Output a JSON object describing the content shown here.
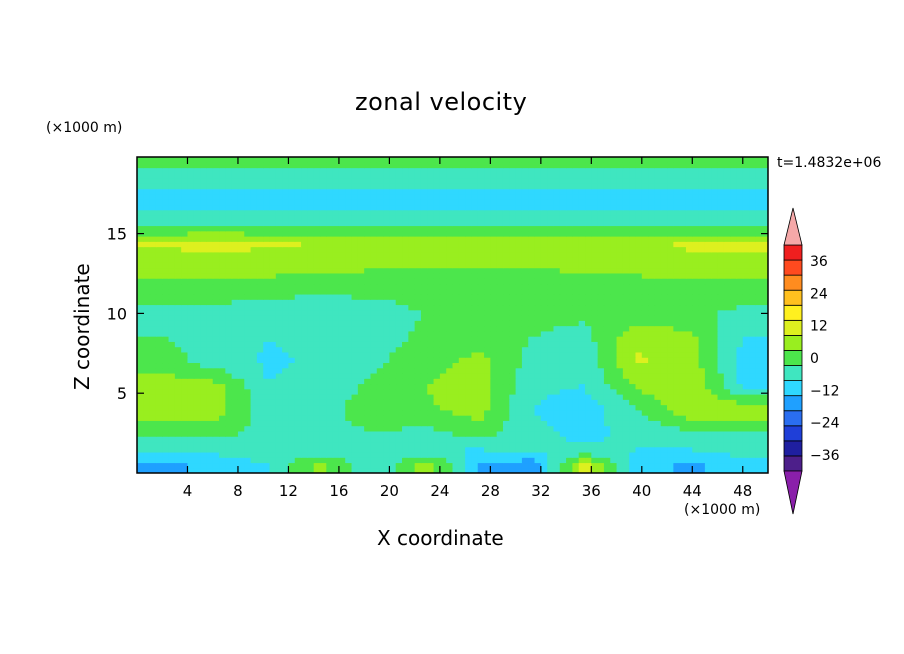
{
  "chart_data": {
    "type": "heatmap",
    "title": "zonal velocity",
    "xlabel": "X coordinate",
    "ylabel": "Z coordinate",
    "x_unit": "(×1000 m)",
    "y_unit": "(×1000 m)",
    "timestamp": "t=1.4832e+06",
    "xlim": [
      0,
      50
    ],
    "ylim": [
      0,
      19.8
    ],
    "x_ticks": [
      "4",
      "8",
      "12",
      "16",
      "20",
      "24",
      "28",
      "32",
      "36",
      "40",
      "44",
      "48"
    ],
    "y_ticks": [
      "5",
      "10",
      "15"
    ],
    "colorbar": {
      "levels": [
        -42,
        -36,
        -30,
        -24,
        -18,
        -12,
        -6,
        0,
        6,
        12,
        18,
        24,
        30,
        36,
        42
      ],
      "tick_labels": [
        "36",
        "24",
        "12",
        "0",
        "−12",
        "−24",
        "−36"
      ],
      "tick_values": [
        36,
        24,
        12,
        0,
        -12,
        -24,
        -36
      ],
      "colors": [
        "#4d1f8a",
        "#1f1fa0",
        "#1f3fd8",
        "#2a6ef0",
        "#1fa0ff",
        "#2fd8ff",
        "#3fe6c0",
        "#4ce64c",
        "#99ee1f",
        "#ddf01f",
        "#fff01f",
        "#ffc01f",
        "#ff8c1f",
        "#ff4a1f",
        "#f01f1f"
      ],
      "under_color": "#8a1faa",
      "over_color": "#f5a8a8"
    },
    "grid": false,
    "field_description_rows_z_top_to_bottom": [
      {
        "z": 19.5,
        "values": [
          0.5,
          0.5,
          0.5,
          0.5,
          0.5,
          0.5,
          0.5,
          0.5,
          0.5,
          0.5,
          0.5,
          0.5
        ]
      },
      {
        "z": 18.5,
        "values": [
          -2,
          -2,
          -2,
          -2,
          -2,
          -2,
          -2,
          -2,
          -2,
          -2,
          -2,
          -2
        ]
      },
      {
        "z": 17.5,
        "values": [
          -8,
          -8,
          -8,
          -8,
          -8,
          -8,
          -8,
          -8,
          -8,
          -8,
          -8,
          -8
        ]
      },
      {
        "z": 16.5,
        "values": [
          -6,
          -6,
          -6,
          -6,
          -6,
          -6,
          -6,
          -6,
          -6,
          -6,
          -6,
          -6
        ]
      },
      {
        "z": 15.5,
        "values": [
          -1,
          -1,
          -1,
          -1,
          -1,
          -1,
          -1,
          -1,
          -1,
          -1,
          -1,
          -1
        ]
      },
      {
        "z": 14.5,
        "values": [
          13,
          14,
          13,
          12,
          10,
          8,
          8,
          8,
          9,
          10,
          13,
          13
        ]
      },
      {
        "z": 13.0,
        "values": [
          9,
          9,
          9,
          8,
          7,
          6,
          6,
          6,
          7,
          8,
          10,
          10
        ]
      },
      {
        "z": 11.5,
        "values": [
          2,
          3,
          2,
          1,
          1,
          2,
          3,
          4,
          4,
          3,
          2,
          2
        ]
      },
      {
        "z": 10.0,
        "values": [
          -1,
          -2,
          -4,
          -3,
          -2,
          0,
          1,
          2,
          1,
          3,
          1,
          -1
        ]
      },
      {
        "z": 8.5,
        "values": [
          0,
          -3,
          -6,
          -4,
          -2,
          1,
          4,
          0,
          -2,
          10,
          8,
          -6
        ]
      },
      {
        "z": 7.0,
        "values": [
          3,
          -3,
          -7,
          -5,
          -1,
          3,
          8,
          -2,
          -5,
          13,
          10,
          -8
        ]
      },
      {
        "z": 5.5,
        "values": [
          9,
          8,
          -6,
          -3,
          1,
          6,
          10,
          -5,
          -6,
          7,
          12,
          -7
        ]
      },
      {
        "z": 4.0,
        "values": [
          10,
          9,
          -4,
          -2,
          3,
          5,
          9,
          -6,
          -9,
          -1,
          11,
          11
        ]
      },
      {
        "z": 2.5,
        "values": [
          2,
          2,
          -2,
          -2,
          0,
          -2,
          2,
          -4,
          -8,
          -4,
          -2,
          0
        ]
      },
      {
        "z": 1.5,
        "values": [
          -4,
          -4,
          -3,
          -4,
          -5,
          -6,
          -6,
          -5,
          -5,
          -6,
          -6,
          -4
        ]
      },
      {
        "z": 0.5,
        "values": [
          -14,
          -10,
          -6,
          8,
          -6,
          10,
          -12,
          -16,
          14,
          -8,
          -14,
          -8
        ]
      }
    ]
  }
}
